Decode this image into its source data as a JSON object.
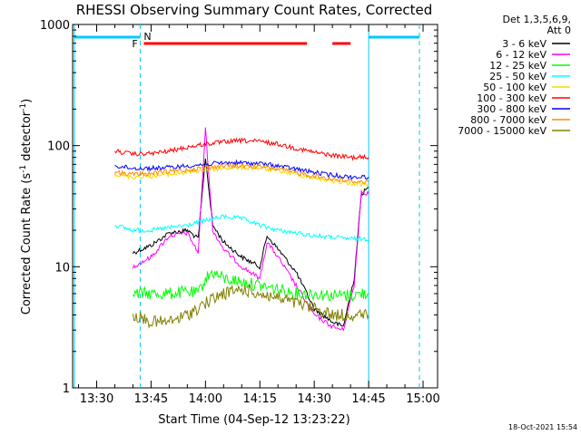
{
  "chart_data": {
    "type": "line",
    "title": "RHESSI Observing Summary Count Rates, Corrected",
    "xlabel": "Start Time (04-Sep-12 13:23:22)",
    "ylabel_main": "Corrected Count Rate (s",
    "ylabel_sup1": "-1",
    "ylabel_mid": " detector",
    "ylabel_sup2": "-1",
    "ylabel_end": ")",
    "yscale": "log",
    "ylim": [
      1,
      1000
    ],
    "xlim": [
      "13:23:22",
      "15:04:00"
    ],
    "x_ticks": [
      "13:30",
      "13:45",
      "14:00",
      "14:15",
      "14:30",
      "14:45",
      "15:00"
    ],
    "y_ticks": [
      "1",
      "10",
      "100",
      "1000"
    ],
    "legend_header": [
      "Det 1,3,5,6,9,",
      "Att 0"
    ],
    "footer_timestamp": "18-Oct-2021 15:54",
    "grid": false,
    "annotations": [
      {
        "label": "N",
        "color": "#00c8ff",
        "kind": "night"
      },
      {
        "label": "F",
        "color": "#ff0000",
        "kind": "flare"
      }
    ],
    "series": [
      {
        "name": "3 - 6 keV",
        "color": "#000000",
        "points": [
          [
            "13:40",
            13
          ],
          [
            "13:45",
            15
          ],
          [
            "13:50",
            19
          ],
          [
            "13:55",
            20
          ],
          [
            "13:58",
            17
          ],
          [
            "14:00",
            80
          ],
          [
            "14:02",
            22
          ],
          [
            "14:05",
            16
          ],
          [
            "14:10",
            12
          ],
          [
            "14:15",
            10
          ],
          [
            "14:17",
            18
          ],
          [
            "14:20",
            14
          ],
          [
            "14:25",
            9
          ],
          [
            "14:30",
            4.5
          ],
          [
            "14:35",
            3.5
          ],
          [
            "14:38",
            3.2
          ],
          [
            "14:41",
            8
          ],
          [
            "14:43",
            40
          ],
          [
            "14:45",
            45
          ]
        ]
      },
      {
        "name": "6 - 12 keV",
        "color": "#ff00ff",
        "points": [
          [
            "13:40",
            10
          ],
          [
            "13:45",
            12
          ],
          [
            "13:50",
            18
          ],
          [
            "13:55",
            19
          ],
          [
            "13:58",
            13
          ],
          [
            "14:00",
            140
          ],
          [
            "14:02",
            20
          ],
          [
            "14:05",
            14
          ],
          [
            "14:10",
            10
          ],
          [
            "14:15",
            8
          ],
          [
            "14:17",
            16
          ],
          [
            "14:20",
            12
          ],
          [
            "14:25",
            7
          ],
          [
            "14:30",
            4
          ],
          [
            "14:35",
            3.2
          ],
          [
            "14:38",
            3
          ],
          [
            "14:41",
            7
          ],
          [
            "14:43",
            42
          ],
          [
            "14:45",
            40
          ]
        ]
      },
      {
        "name": "12 - 25 keV",
        "color": "#00ff00",
        "points": [
          [
            "13:40",
            6
          ],
          [
            "13:45",
            6
          ],
          [
            "13:50",
            6
          ],
          [
            "13:55",
            6.2
          ],
          [
            "13:58",
            6
          ],
          [
            "14:00",
            8
          ],
          [
            "14:02",
            9
          ],
          [
            "14:05",
            8
          ],
          [
            "14:10",
            7.5
          ],
          [
            "14:15",
            7
          ],
          [
            "14:20",
            6.5
          ],
          [
            "14:25",
            6
          ],
          [
            "14:30",
            6
          ],
          [
            "14:35",
            5.8
          ],
          [
            "14:40",
            5.8
          ],
          [
            "14:43",
            6
          ],
          [
            "14:45",
            6
          ]
        ]
      },
      {
        "name": "25 - 50 keV",
        "color": "#00ffff",
        "points": [
          [
            "13:35",
            22
          ],
          [
            "13:40",
            20
          ],
          [
            "13:45",
            20
          ],
          [
            "13:50",
            21
          ],
          [
            "13:55",
            22
          ],
          [
            "14:00",
            24
          ],
          [
            "14:05",
            26
          ],
          [
            "14:10",
            25
          ],
          [
            "14:15",
            22
          ],
          [
            "14:20",
            20
          ],
          [
            "14:25",
            19
          ],
          [
            "14:30",
            18
          ],
          [
            "14:35",
            17.5
          ],
          [
            "14:40",
            17
          ],
          [
            "14:45",
            17
          ]
        ]
      },
      {
        "name": "50 - 100 keV",
        "color": "#ffd700",
        "points": [
          [
            "13:35",
            58
          ],
          [
            "13:40",
            55
          ],
          [
            "13:45",
            56
          ],
          [
            "13:50",
            58
          ],
          [
            "13:55",
            60
          ],
          [
            "14:00",
            63
          ],
          [
            "14:05",
            65
          ],
          [
            "14:10",
            66
          ],
          [
            "14:15",
            65
          ],
          [
            "14:20",
            62
          ],
          [
            "14:25",
            58
          ],
          [
            "14:30",
            54
          ],
          [
            "14:35",
            51
          ],
          [
            "14:40",
            49
          ],
          [
            "14:45",
            47
          ]
        ]
      },
      {
        "name": "100 - 300 keV",
        "color": "#ff0000",
        "points": [
          [
            "13:35",
            90
          ],
          [
            "13:40",
            85
          ],
          [
            "13:45",
            86
          ],
          [
            "13:50",
            90
          ],
          [
            "13:55",
            97
          ],
          [
            "14:00",
            103
          ],
          [
            "14:05",
            107
          ],
          [
            "14:10",
            110
          ],
          [
            "14:15",
            108
          ],
          [
            "14:20",
            103
          ],
          [
            "14:25",
            95
          ],
          [
            "14:30",
            88
          ],
          [
            "14:35",
            83
          ],
          [
            "14:40",
            80
          ],
          [
            "14:45",
            80
          ]
        ]
      },
      {
        "name": "300 - 800 keV",
        "color": "#0000ff",
        "points": [
          [
            "13:35",
            68
          ],
          [
            "13:40",
            65
          ],
          [
            "13:45",
            65
          ],
          [
            "13:50",
            66
          ],
          [
            "13:55",
            68
          ],
          [
            "14:00",
            70
          ],
          [
            "14:05",
            72
          ],
          [
            "14:10",
            72
          ],
          [
            "14:15",
            71
          ],
          [
            "14:20",
            68
          ],
          [
            "14:25",
            64
          ],
          [
            "14:30",
            60
          ],
          [
            "14:35",
            57
          ],
          [
            "14:40",
            55
          ],
          [
            "14:45",
            55
          ]
        ]
      },
      {
        "name": "800 - 7000 keV",
        "color": "#ff8c00",
        "points": [
          [
            "13:35",
            60
          ],
          [
            "13:40",
            58
          ],
          [
            "13:45",
            59
          ],
          [
            "13:50",
            61
          ],
          [
            "13:55",
            63
          ],
          [
            "14:00",
            66
          ],
          [
            "14:05",
            68
          ],
          [
            "14:10",
            68
          ],
          [
            "14:15",
            67
          ],
          [
            "14:20",
            64
          ],
          [
            "14:25",
            60
          ],
          [
            "14:30",
            56
          ],
          [
            "14:35",
            53
          ],
          [
            "14:40",
            51
          ],
          [
            "14:45",
            50
          ]
        ]
      },
      {
        "name": "7000 - 15000 keV",
        "color": "#808000",
        "points": [
          [
            "13:40",
            4
          ],
          [
            "13:45",
            3.5
          ],
          [
            "13:50",
            3.5
          ],
          [
            "13:55",
            4
          ],
          [
            "14:00",
            5
          ],
          [
            "14:05",
            6
          ],
          [
            "14:10",
            6.5
          ],
          [
            "14:15",
            6
          ],
          [
            "14:20",
            5.5
          ],
          [
            "14:25",
            5
          ],
          [
            "14:30",
            4.5
          ],
          [
            "14:35",
            4
          ],
          [
            "14:40",
            4
          ],
          [
            "14:45",
            4
          ]
        ]
      }
    ]
  }
}
